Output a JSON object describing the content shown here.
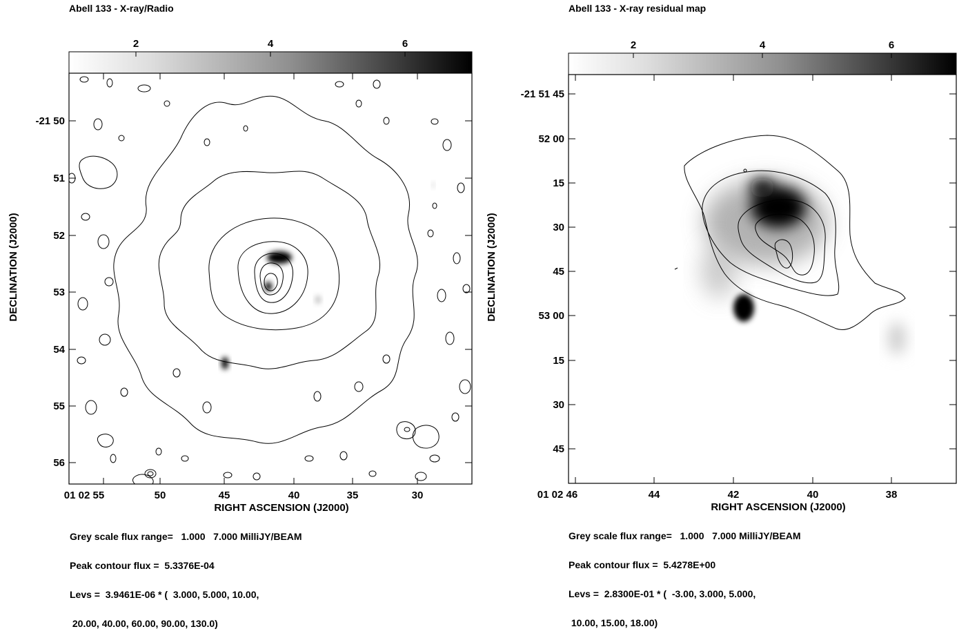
{
  "chart_data": [
    {
      "type": "contour",
      "title": "Abell 133 - X-ray/Radio",
      "xlabel": "RIGHT ASCENSION (J2000)",
      "ylabel": "DECLINATION (J2000)",
      "x_tick_labels": [
        "01 02 55",
        "50",
        "45",
        "40",
        "35",
        "30"
      ],
      "y_tick_labels": [
        "-21 50",
        "51",
        "52",
        "53",
        "54",
        "55",
        "56"
      ],
      "colorbar": {
        "ticks": [
          "2",
          "4",
          "6"
        ],
        "range": [
          1.0,
          7.0
        ],
        "unit": "MilliJY/BEAM"
      },
      "grey_scale_flux_range": "Grey scale flux range=   1.000   7.000 MilliJY/BEAM",
      "peak_contour_flux": "Peak contour flux =  5.3376E-04",
      "levs": "Levs =  3.9461E-06 * (  3.000, 5.000, 10.00,",
      "levs_cont": " 20.00, 40.00, 60.00, 90.00, 130.0)",
      "contour_levels": [
        3.0,
        5.0,
        10.0,
        20.0,
        40.0,
        60.0,
        90.0,
        130.0
      ]
    },
    {
      "type": "contour",
      "title": "Abell 133 - X-ray residual map",
      "xlabel": "RIGHT ASCENSION (J2000)",
      "ylabel": "DECLINATION (J2000)",
      "x_tick_labels": [
        "01 02 46",
        "44",
        "42",
        "40",
        "38"
      ],
      "y_tick_labels": [
        "-21 51 45",
        "52 00",
        "15",
        "30",
        "45",
        "53 00",
        "15",
        "30",
        "45"
      ],
      "colorbar": {
        "ticks": [
          "2",
          "4",
          "6"
        ],
        "range": [
          1.0,
          7.0
        ],
        "unit": "MilliJY/BEAM"
      },
      "grey_scale_flux_range": "Grey scale flux range=   1.000   7.000 MilliJY/BEAM",
      "peak_contour_flux": "Peak contour flux =  5.4278E+00",
      "levs": "Levs =  2.8300E-01 * (  -3.00, 3.000, 5.000,",
      "levs_cont": " 10.00, 15.00, 18.00)",
      "contour_levels": [
        -3.0,
        3.0,
        5.0,
        10.0,
        15.0,
        18.0
      ]
    }
  ]
}
